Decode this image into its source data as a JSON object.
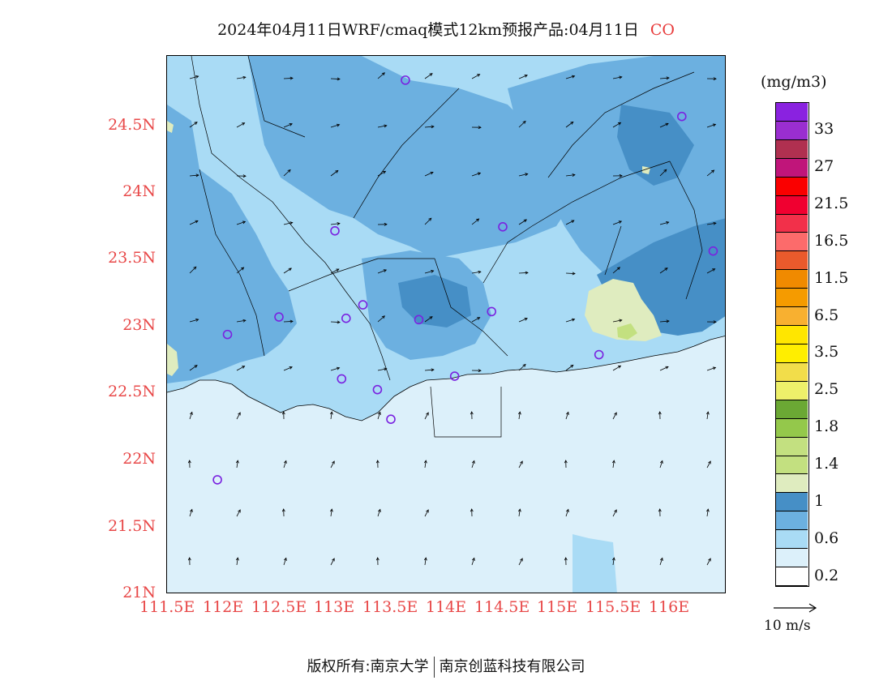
{
  "title": {
    "main": "2024年04月11日WRF/cmaq模式12km预报产品:04月11日",
    "species": "CO"
  },
  "map": {
    "background_color": "#dcf0fa",
    "land_color": "#a9dbf5"
  },
  "chart_data": {
    "type": "heatmap",
    "title": "2024年04月11日WRF/cmaq模式12km预报产品:04月11日 CO",
    "x_ticks": [
      "111.5E",
      "112E",
      "112.5E",
      "113E",
      "113.5E",
      "114E",
      "114.5E",
      "115E",
      "115.5E",
      "116E"
    ],
    "y_ticks": [
      "24.5N",
      "24N",
      "23.5N",
      "23N",
      "22.5N",
      "22N",
      "21.5N",
      "21N"
    ],
    "x_range": [
      111.5,
      116.5
    ],
    "y_range": [
      21.0,
      25.0
    ],
    "colorbar": {
      "units": "(mg/m3)",
      "levels": [
        {
          "label": "0.2",
          "color": "#ffffff"
        },
        {
          "label": "",
          "color": "#dcf0fa"
        },
        {
          "label": "0.6",
          "color": "#a9dbf5"
        },
        {
          "label": "",
          "color": "#6cb0e0"
        },
        {
          "label": "1",
          "color": "#468fc6"
        },
        {
          "label": "",
          "color": "#dfecbf"
        },
        {
          "label": "1.4",
          "color": "#c3e080"
        },
        {
          "label": "",
          "color": "#c3e080"
        },
        {
          "label": "1.8",
          "color": "#94c84b"
        },
        {
          "label": "",
          "color": "#6ba834"
        },
        {
          "label": "2.5",
          "color": "#eef06a"
        },
        {
          "label": "",
          "color": "#f2dd4a"
        },
        {
          "label": "3.5",
          "color": "#ffee00"
        },
        {
          "label": "",
          "color": "#ffe600"
        },
        {
          "label": "6.5",
          "color": "#f8b030"
        },
        {
          "label": "",
          "color": "#f59b00"
        },
        {
          "label": "11.5",
          "color": "#f08a00"
        },
        {
          "label": "",
          "color": "#ea5a2c"
        },
        {
          "label": "16.5",
          "color": "#fc6b6b"
        },
        {
          "label": "",
          "color": "#f2304a"
        },
        {
          "label": "21.5",
          "color": "#f00030"
        },
        {
          "label": "",
          "color": "#fa0000"
        },
        {
          "label": "27",
          "color": "#c0157a"
        },
        {
          "label": "",
          "color": "#b03050"
        },
        {
          "label": "33",
          "color": "#9a2ed0"
        },
        {
          "label": "",
          "color": "#8a22e0"
        }
      ]
    },
    "stations": [
      {
        "lon": 113.63,
        "lat": 24.82
      },
      {
        "lon": 116.1,
        "lat": 24.55
      },
      {
        "lon": 113.0,
        "lat": 23.7
      },
      {
        "lon": 114.5,
        "lat": 23.73
      },
      {
        "lon": 116.38,
        "lat": 23.55
      },
      {
        "lon": 113.25,
        "lat": 23.15
      },
      {
        "lon": 112.5,
        "lat": 23.06
      },
      {
        "lon": 113.1,
        "lat": 23.05
      },
      {
        "lon": 113.75,
        "lat": 23.04
      },
      {
        "lon": 114.4,
        "lat": 23.1
      },
      {
        "lon": 112.04,
        "lat": 22.93
      },
      {
        "lon": 115.36,
        "lat": 22.78
      },
      {
        "lon": 113.06,
        "lat": 22.6
      },
      {
        "lon": 114.07,
        "lat": 22.62
      },
      {
        "lon": 113.38,
        "lat": 22.52
      },
      {
        "lon": 113.5,
        "lat": 22.3
      },
      {
        "lon": 111.95,
        "lat": 21.85
      }
    ],
    "wind_reference": "10 m/s"
  },
  "copyright": {
    "left": "版权所有:南京大学",
    "right": "南京创蓝科技有限公司"
  }
}
